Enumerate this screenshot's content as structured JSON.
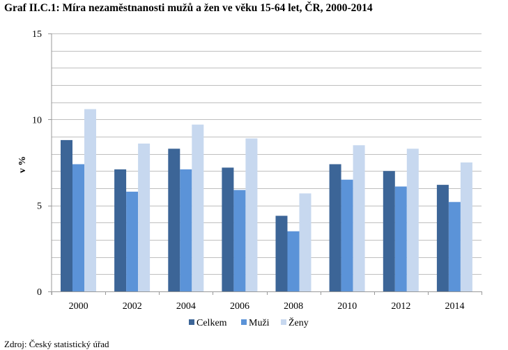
{
  "title": "Graf II.C.1: Míra nezaměstnanosti mužů a žen ve věku 15-64 let, ČR, 2000-2014",
  "footer_note": "Zdroj: Český statistický úřad",
  "colors": {
    "celkem": "#3c6597",
    "muzi": "#5b93d8",
    "zeny": "#c7d8ef",
    "grid": "#bfbfbf",
    "axis": "#999999"
  },
  "chart_data": {
    "type": "bar",
    "categories": [
      "2000",
      "2002",
      "2004",
      "2006",
      "2008",
      "2010",
      "2012",
      "2014"
    ],
    "series": [
      {
        "name": "Celkem",
        "values": [
          8.8,
          7.1,
          8.3,
          7.2,
          4.4,
          7.4,
          7.0,
          6.2
        ]
      },
      {
        "name": "Muži",
        "values": [
          7.4,
          5.8,
          7.1,
          5.9,
          3.5,
          6.5,
          6.1,
          5.2
        ]
      },
      {
        "name": "Ženy",
        "values": [
          10.6,
          8.6,
          9.7,
          8.9,
          5.7,
          8.5,
          8.3,
          7.5
        ]
      }
    ],
    "ylabel": "v %",
    "ylim": [
      0,
      15
    ],
    "yticks": [
      0,
      5,
      10,
      15
    ],
    "minor_grid_step": 1,
    "grid": true,
    "legend_position": "bottom"
  }
}
